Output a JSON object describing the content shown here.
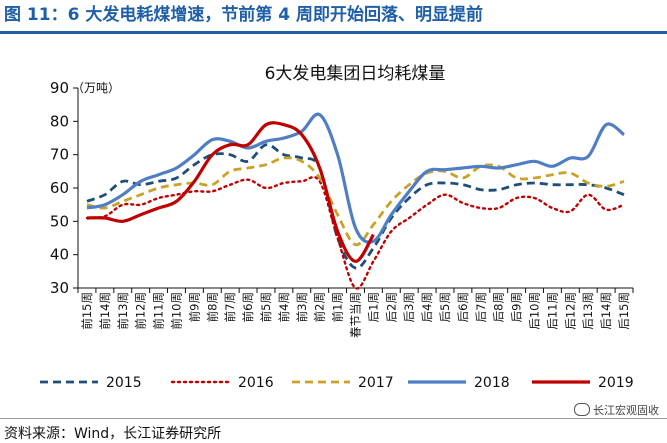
{
  "header": {
    "figure_title": "图 11：6 大发电耗煤增速，节前第 4 周即开始回落、明显提前"
  },
  "footer": {
    "source": "资料来源：Wind，长江证券研究所",
    "watermark": "长江宏观固收"
  },
  "chart_data": {
    "type": "line",
    "title": "6大发电集团日均耗煤量",
    "unit_label": "（万吨）",
    "xlabel": "",
    "ylabel": "",
    "ylim": [
      30,
      90
    ],
    "yticks": [
      30,
      40,
      50,
      60,
      70,
      80,
      90
    ],
    "grid": false,
    "legend_position": "bottom",
    "categories": [
      "前15周",
      "前14周",
      "前13周",
      "前12周",
      "前11周",
      "前10周",
      "前9周",
      "前8周",
      "前7周",
      "前6周",
      "前5周",
      "前4周",
      "前3周",
      "前2周",
      "前1周",
      "春节当周",
      "后1周",
      "后2周",
      "后3周",
      "后4周",
      "后5周",
      "后6周",
      "后7周",
      "后8周",
      "后9周",
      "后10周",
      "后11周",
      "后12周",
      "后13周",
      "后14周",
      "后15周"
    ],
    "series": [
      {
        "name": "2015",
        "color": "#1f4e79",
        "dash": "dash",
        "values": [
          56,
          58,
          62,
          61,
          62,
          63,
          67,
          70,
          70,
          68,
          73,
          70,
          69,
          66,
          45,
          36,
          42,
          51,
          57,
          61,
          61.5,
          61,
          59.5,
          59.5,
          61,
          61.5,
          61,
          61,
          61,
          60,
          58
        ]
      },
      {
        "name": "2016",
        "color": "#c00000",
        "dash": "dot",
        "values": [
          51,
          51.5,
          55,
          55,
          57,
          58,
          59,
          59,
          61,
          62.5,
          60,
          61.5,
          62,
          62,
          45,
          30,
          38,
          47,
          51,
          55,
          58,
          55.5,
          54,
          54,
          57,
          57,
          54,
          53,
          58,
          53.5,
          55
        ]
      },
      {
        "name": "2017",
        "color": "#c9a227",
        "dash": "dash",
        "values": [
          55,
          54,
          56,
          58,
          60,
          61,
          61.5,
          61,
          65,
          66,
          67,
          69,
          68,
          63,
          52,
          43,
          49,
          56,
          61,
          64.5,
          65,
          63,
          66.5,
          66.5,
          63,
          63,
          64,
          64.5,
          61.5,
          60.5,
          62
        ]
      },
      {
        "name": "2018",
        "color": "#4f7ec4",
        "dash": "solid",
        "values": [
          54,
          55,
          58,
          62,
          64,
          66,
          70,
          74.5,
          74,
          72,
          74,
          75,
          77,
          82,
          70,
          48,
          44,
          52,
          59,
          65,
          65.5,
          66,
          66.5,
          66,
          67,
          68,
          66.5,
          69,
          69.5,
          79,
          76
        ]
      },
      {
        "name": "2019",
        "color": "#c00000",
        "dash": "solid",
        "values": [
          51,
          51,
          50,
          52,
          54,
          56,
          62,
          70,
          73,
          73,
          79,
          79,
          76,
          66,
          47,
          38,
          46,
          null,
          null,
          null,
          null,
          null,
          null,
          null,
          null,
          null,
          null,
          null,
          null,
          null,
          null
        ]
      }
    ]
  }
}
